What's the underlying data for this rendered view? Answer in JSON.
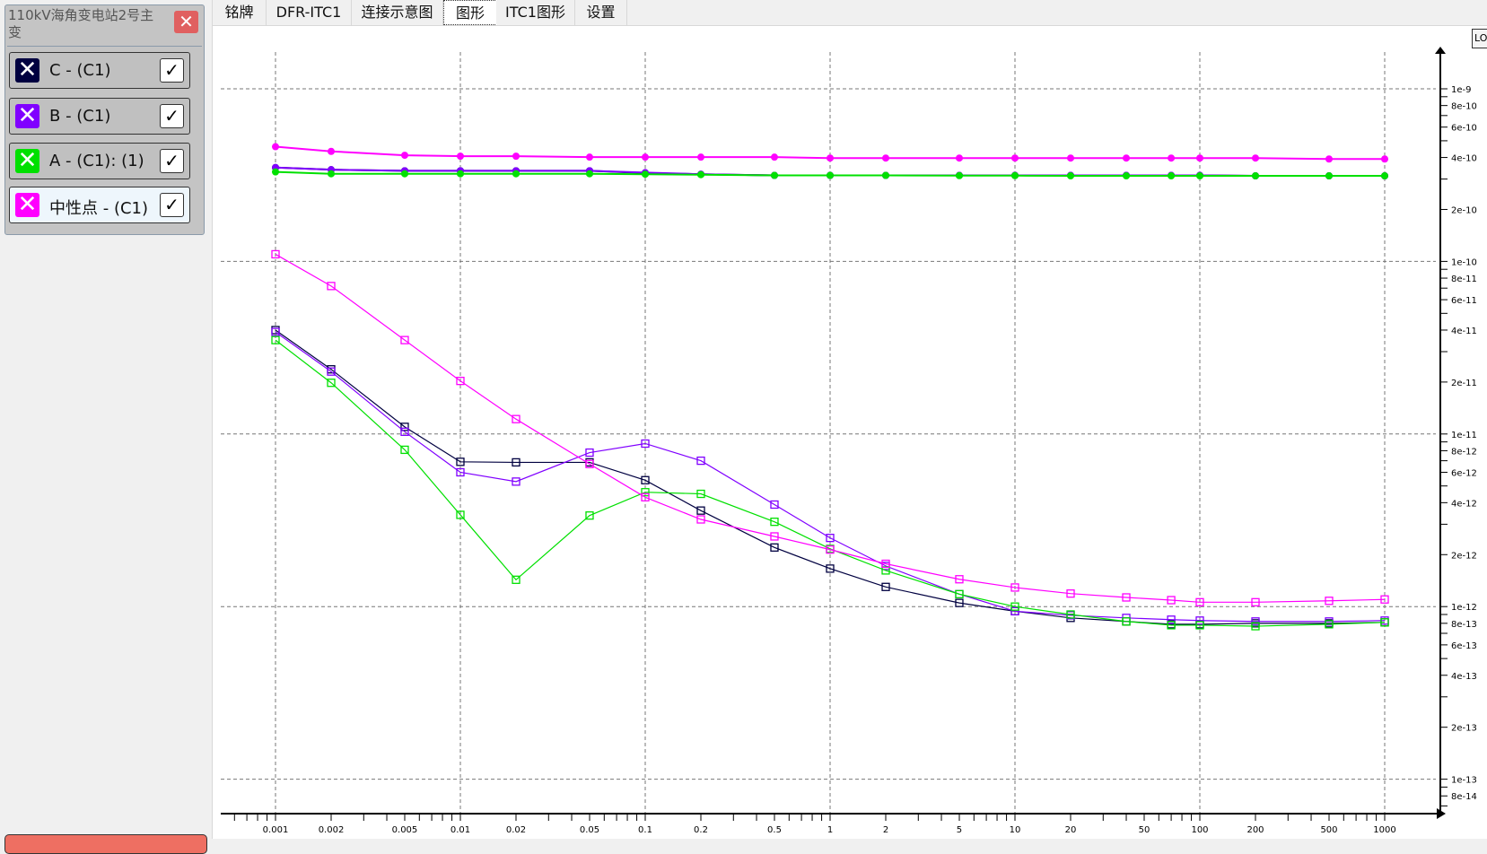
{
  "legend": {
    "title": "110kV海角变电站2号主变",
    "close_icon": "close-icon",
    "items": [
      {
        "label": "C - (C1)",
        "color": "#000040",
        "checked": true
      },
      {
        "label": "B - (C1)",
        "color": "#8000ff",
        "checked": true
      },
      {
        "label": "A - (C1): (1)",
        "color": "#00e000",
        "checked": true
      },
      {
        "label": "中性点 - (C1)",
        "color": "#ff00ff",
        "checked": true
      }
    ]
  },
  "tabs": [
    {
      "label": "铭牌"
    },
    {
      "label": "DFR-ITC1"
    },
    {
      "label": "连接示意图"
    },
    {
      "label": "图形",
      "active": true
    },
    {
      "label": "ITC1图形"
    },
    {
      "label": "设置"
    }
  ],
  "lo_button": "LO",
  "chart_data": {
    "type": "line",
    "x_scale": "log",
    "y_scale": "log",
    "xlim": [
      0.0005,
      1950
    ],
    "ylim": [
      6.3e-14,
      1.7e-09
    ],
    "grid": true,
    "y_axis_side": "right",
    "x_tick_labels": [
      "0.001",
      "0.002",
      "0.005",
      "0.01",
      "0.02",
      "0.05",
      "0.1",
      "0.2",
      "0.5",
      "1",
      "2",
      "5",
      "10",
      "20",
      "50",
      "100",
      "200",
      "500",
      "1000"
    ],
    "y_tick_labels": [
      "1e-9",
      "8e-10",
      "6e-10",
      "4e-10",
      "2e-10",
      "1e-10",
      "8e-11",
      "6e-11",
      "4e-11",
      "2e-11",
      "1e-11",
      "8e-12",
      "6e-12",
      "4e-12",
      "2e-12",
      "1e-12",
      "8e-13",
      "6e-13",
      "4e-13",
      "2e-13",
      "1e-13",
      "8e-14"
    ],
    "x": [
      0.001,
      0.002,
      0.005,
      0.01,
      0.02,
      0.05,
      0.1,
      0.2,
      0.5,
      1,
      2,
      5,
      10,
      20,
      40,
      70,
      100,
      200,
      500,
      1000
    ],
    "series": [
      {
        "name": "C - (C1)",
        "color": "#000040",
        "marker": "circle",
        "values": [
          3.5e-10,
          3.4e-10,
          3.35e-10,
          3.35e-10,
          3.35e-10,
          3.35e-10,
          3.25e-10,
          3.2e-10,
          3.15e-10,
          3.15e-10,
          3.15e-10,
          3.15e-10,
          3.15e-10,
          3.15e-10,
          3.15e-10,
          3.15e-10,
          3.15e-10,
          3.13e-10,
          3.13e-10,
          3.13e-10
        ]
      },
      {
        "name": "B - (C1)",
        "color": "#8000ff",
        "marker": "circle",
        "values": [
          3.5e-10,
          3.4e-10,
          3.35e-10,
          3.35e-10,
          3.35e-10,
          3.35e-10,
          3.27e-10,
          3.2e-10,
          3.15e-10,
          3.15e-10,
          3.15e-10,
          3.15e-10,
          3.15e-10,
          3.15e-10,
          3.15e-10,
          3.15e-10,
          3.15e-10,
          3.13e-10,
          3.13e-10,
          3.13e-10
        ]
      },
      {
        "name": "A - (C1): (1)",
        "color": "#00e000",
        "marker": "circle",
        "values": [
          3.3e-10,
          3.22e-10,
          3.22e-10,
          3.22e-10,
          3.22e-10,
          3.22e-10,
          3.2e-10,
          3.18e-10,
          3.15e-10,
          3.15e-10,
          3.15e-10,
          3.14e-10,
          3.14e-10,
          3.13e-10,
          3.13e-10,
          3.13e-10,
          3.13e-10,
          3.13e-10,
          3.13e-10,
          3.13e-10
        ]
      },
      {
        "name": "中性点 - (C1)",
        "color": "#ff00ff",
        "marker": "circle",
        "values": [
          4.62e-10,
          4.34e-10,
          4.12e-10,
          4.07e-10,
          4.07e-10,
          4.02e-10,
          4.02e-10,
          4.02e-10,
          4.02e-10,
          3.97e-10,
          3.97e-10,
          3.97e-10,
          3.97e-10,
          3.97e-10,
          3.97e-10,
          3.97e-10,
          3.97e-10,
          3.97e-10,
          3.92e-10,
          3.92e-10
        ]
      },
      {
        "name": "C - (C1)",
        "color": "#000040",
        "marker": "square",
        "values": [
          4e-11,
          2.37e-11,
          1.1e-11,
          6.9e-12,
          6.85e-12,
          6.85e-12,
          5.4e-12,
          3.6e-12,
          2.2e-12,
          1.66e-12,
          1.3e-12,
          1.05e-12,
          9.4e-13,
          8.6e-13,
          8.2e-13,
          7.9e-13,
          7.9e-13,
          8e-13,
          8e-13,
          8.1e-13
        ]
      },
      {
        "name": "B - (C1)",
        "color": "#8000ff",
        "marker": "square",
        "values": [
          3.9e-11,
          2.3e-11,
          1.03e-11,
          6e-12,
          5.3e-12,
          7.8e-12,
          8.8e-12,
          7e-12,
          3.9e-12,
          2.5e-12,
          1.72e-12,
          1.18e-12,
          9.4e-13,
          8.9e-13,
          8.6e-13,
          8.4e-13,
          8.3e-13,
          8.2e-13,
          8.2e-13,
          8.3e-13
        ]
      },
      {
        "name": "A - (C1): (1)",
        "color": "#00e000",
        "marker": "square",
        "values": [
          3.5e-11,
          1.98e-11,
          8.1e-12,
          3.4e-12,
          1.43e-12,
          3.37e-12,
          4.6e-12,
          4.5e-12,
          3.1e-12,
          2.16e-12,
          1.62e-12,
          1.18e-12,
          1e-12,
          9e-13,
          8.2e-13,
          7.8e-13,
          7.8e-13,
          7.7e-13,
          7.9e-13,
          8.1e-13
        ]
      },
      {
        "name": "中性点 - (C1)",
        "color": "#ff00ff",
        "marker": "square",
        "values": [
          1.1e-10,
          7.2e-11,
          3.5e-11,
          2.03e-11,
          1.22e-11,
          6.7e-12,
          4.3e-12,
          3.2e-12,
          2.55e-12,
          2.14e-12,
          1.77e-12,
          1.44e-12,
          1.29e-12,
          1.19e-12,
          1.13e-12,
          1.09e-12,
          1.06e-12,
          1.06e-12,
          1.08e-12,
          1.1e-12
        ]
      }
    ]
  }
}
